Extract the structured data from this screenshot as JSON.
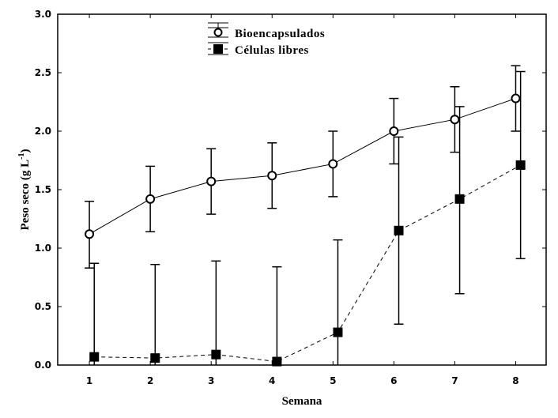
{
  "chart_data": {
    "type": "line",
    "title": "",
    "xlabel": "Semana",
    "ylabel": "Peso seco (g L-1)",
    "ylabel_parts": {
      "main": "Peso seco (g L",
      "sup": "-1",
      "end": ")"
    },
    "x": [
      1,
      2,
      3,
      4,
      5,
      6,
      7,
      8
    ],
    "xticks": [
      "1",
      "2",
      "3",
      "4",
      "5",
      "6",
      "7",
      "8"
    ],
    "yticks": [
      "0.0",
      "0.5",
      "1.0",
      "1.5",
      "2.0",
      "2.5",
      "3.0"
    ],
    "ylim": [
      0,
      3.0
    ],
    "xlim": [
      0.48,
      8.5
    ],
    "grid": false,
    "legend_position": "top-center",
    "series": [
      {
        "name": "Bioencapsulados",
        "marker": "open-circle",
        "line": "solid",
        "values": [
          1.12,
          1.42,
          1.57,
          1.62,
          1.72,
          2.0,
          2.1,
          2.28
        ],
        "err_upper": [
          1.4,
          1.7,
          1.85,
          1.9,
          2.0,
          2.28,
          2.38,
          2.56
        ],
        "err_lower": [
          0.83,
          1.14,
          1.29,
          1.34,
          1.44,
          1.72,
          1.82,
          2.0
        ],
        "err_offset": 0
      },
      {
        "name": "Células libres",
        "marker": "filled-square",
        "line": "dashed",
        "values": [
          0.07,
          0.06,
          0.09,
          0.03,
          0.28,
          1.15,
          1.42,
          1.71
        ],
        "err_upper": [
          0.87,
          0.86,
          0.89,
          0.84,
          1.07,
          1.95,
          2.21,
          2.51
        ],
        "err_lower": [
          0.0,
          0.0,
          0.0,
          0.0,
          0.0,
          0.35,
          0.61,
          0.91
        ],
        "err_offset": 0.08
      }
    ]
  },
  "legend": {
    "items": [
      {
        "label": "Bioencapsulados"
      },
      {
        "label": "Células libres"
      }
    ]
  },
  "axes": {
    "x_title": "Semana",
    "y_title_main": "Peso seco (g L",
    "y_title_sup": "-1",
    "y_title_end": ")"
  }
}
